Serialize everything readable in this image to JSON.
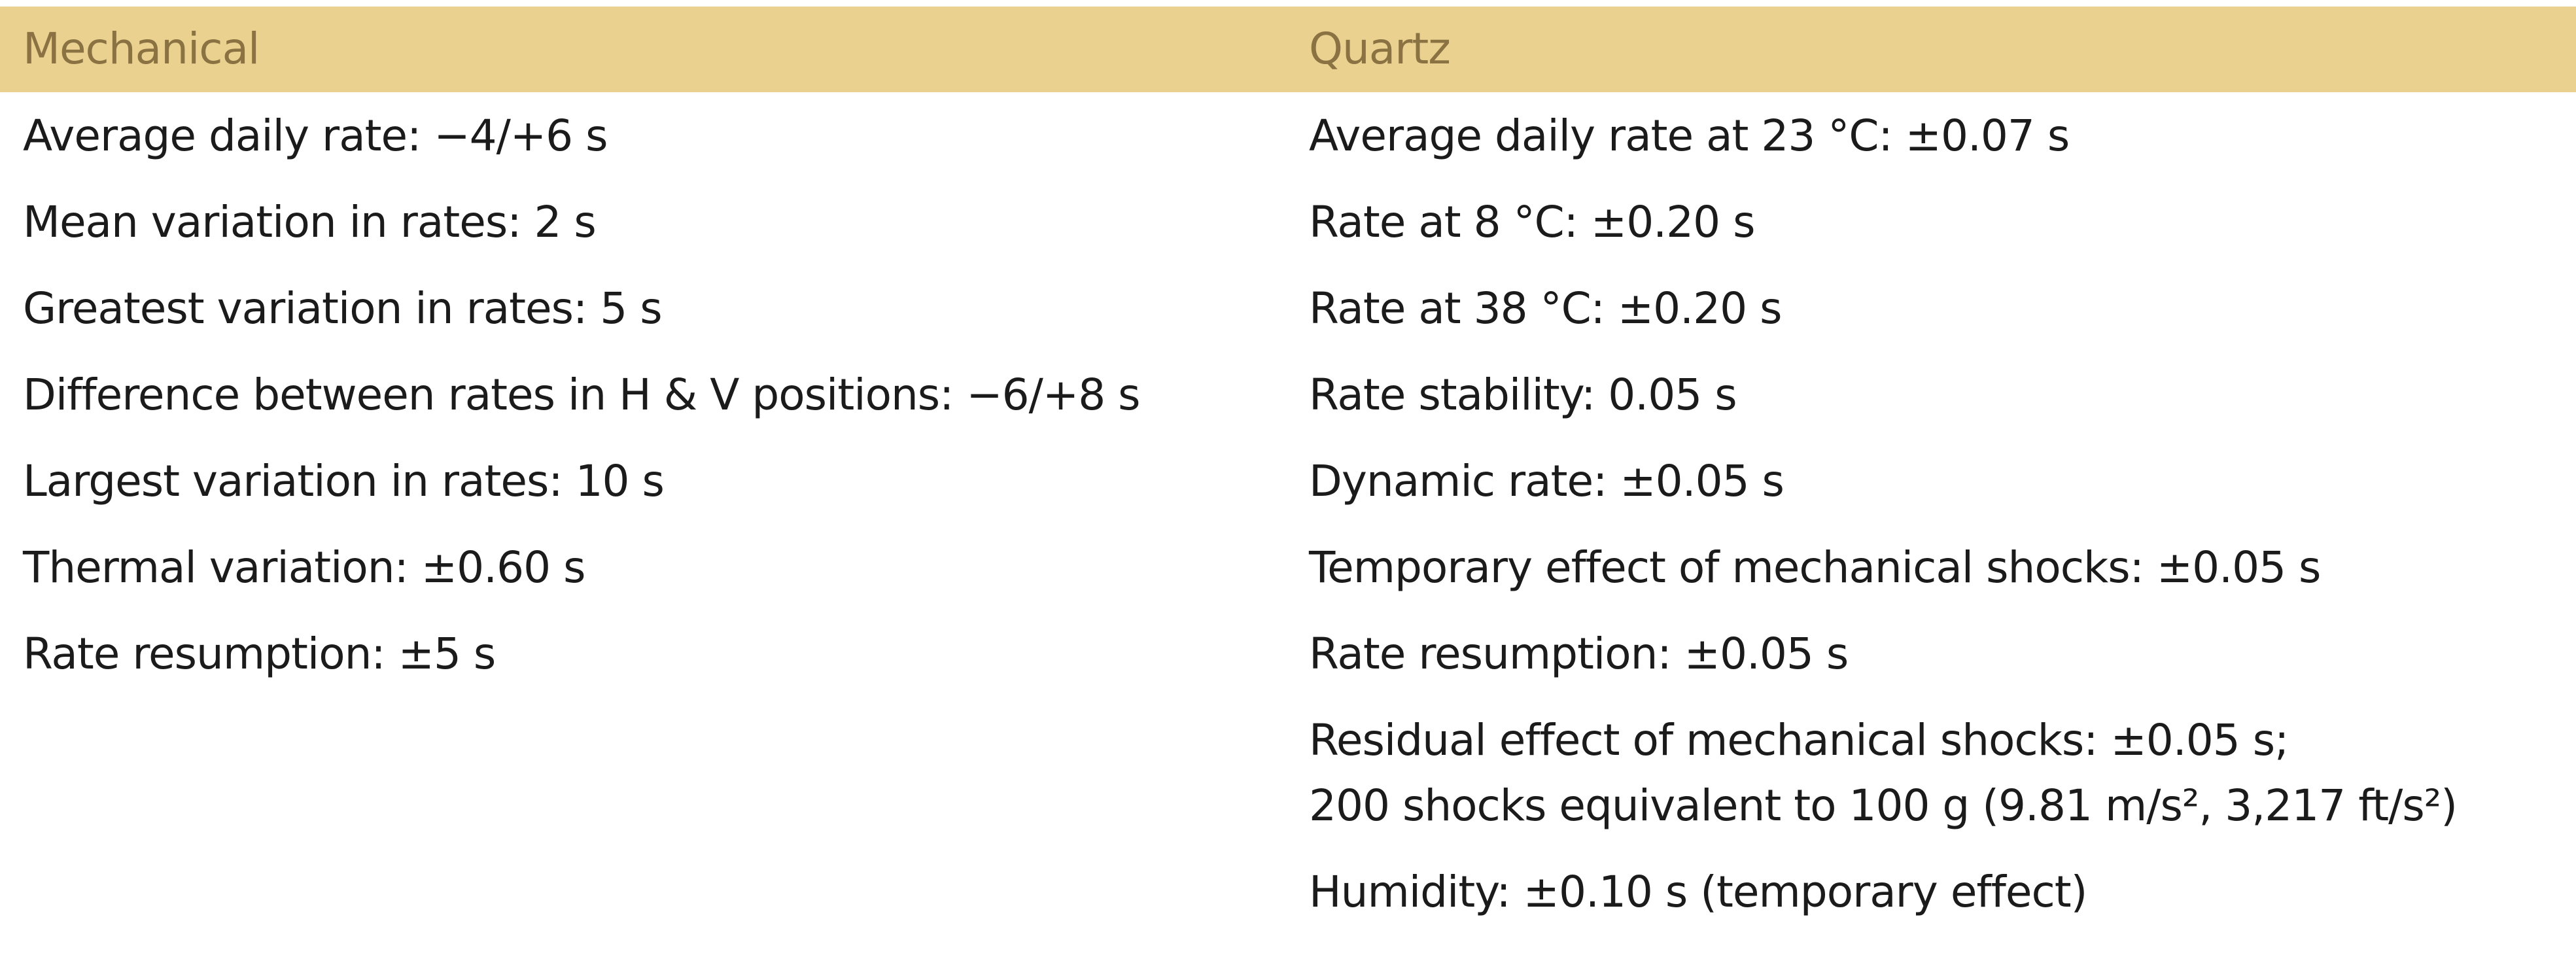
{
  "table": {
    "columns": [
      {
        "header": "Mechanical",
        "items": [
          "Average daily rate: −4/+6 s",
          "Mean variation in rates: 2 s",
          "Greatest variation in rates: 5 s",
          "Difference between rates in H & V positions: −6/+8 s",
          "Largest variation in rates: 10 s",
          "Thermal variation: ±0.60 s",
          "Rate resumption: ±5 s"
        ]
      },
      {
        "header": "Quartz",
        "items": [
          "Average daily rate at 23 °C: ±0.07 s",
          "Rate at 8 °C: ±0.20 s",
          "Rate at 38 °C: ±0.20 s",
          "Rate stability: 0.05 s",
          "Dynamic rate: ±0.05 s",
          "Temporary effect of mechanical shocks: ±0.05 s",
          "Rate resumption: ±0.05 s",
          [
            "Residual effect of mechanical shocks: ±0.05 s;",
            "200 shocks equivalent to 100 g (9.81 m/s², 3,217 ft/s²)"
          ],
          "Humidity: ±0.10 s (temporary effect)"
        ]
      }
    ]
  }
}
